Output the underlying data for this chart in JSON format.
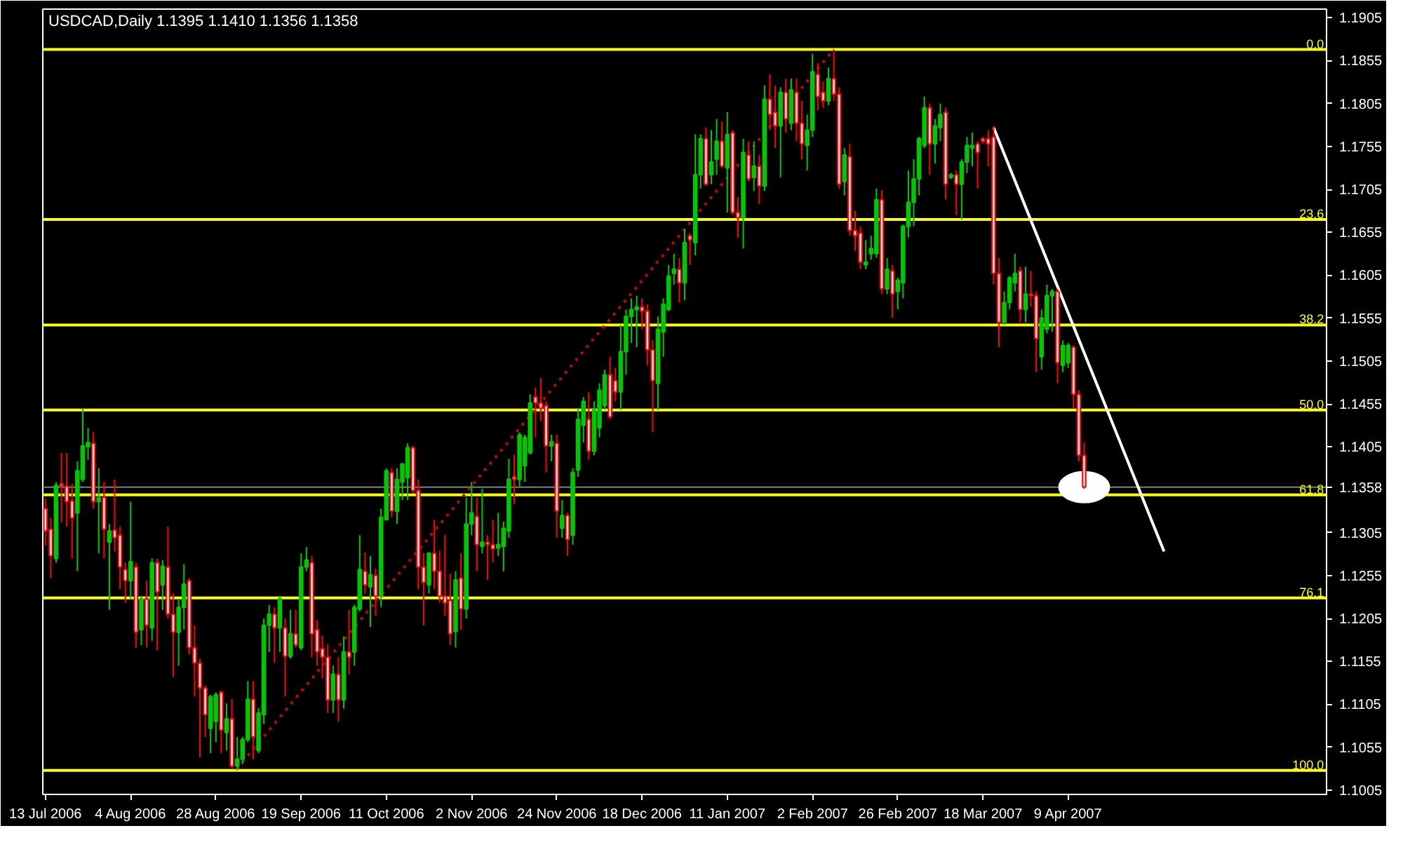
{
  "chart_data": {
    "type": "candlestick",
    "title": "USDCAD,Daily  1.1395 1.1410 1.1356 1.1358",
    "categories": [
      "13 Jul 2006",
      null,
      null,
      null,
      null,
      null,
      null,
      null,
      null,
      null,
      null,
      null,
      null,
      null,
      null,
      null,
      "4 Aug 2006",
      null,
      null,
      null,
      null,
      null,
      null,
      null,
      null,
      null,
      null,
      null,
      null,
      null,
      null,
      null,
      "28 Aug 2006",
      null,
      null,
      null,
      null,
      null,
      null,
      null,
      null,
      null,
      null,
      null,
      null,
      null,
      null,
      null,
      "19 Sep 2006",
      null,
      null,
      null,
      null,
      null,
      null,
      null,
      null,
      null,
      null,
      null,
      null,
      null,
      null,
      null,
      "11 Oct 2006",
      null,
      null,
      null,
      null,
      null,
      null,
      null,
      null,
      null,
      null,
      null,
      null,
      null,
      null,
      null,
      "2 Nov 2006",
      null,
      null,
      null,
      null,
      null,
      null,
      null,
      null,
      null,
      null,
      null,
      null,
      null,
      null,
      null,
      "24 Nov 2006",
      null,
      null,
      null,
      null,
      null,
      null,
      null,
      null,
      null,
      null,
      null,
      null,
      null,
      null,
      null,
      "18 Dec 2006",
      null,
      null,
      null,
      null,
      null,
      null,
      null,
      null,
      null,
      null,
      null,
      null,
      null,
      null,
      null,
      "11 Jan 2007",
      null,
      null,
      null,
      null,
      null,
      null,
      null,
      null,
      null,
      null,
      null,
      null,
      null,
      null,
      null,
      "2 Feb 2007",
      null,
      null,
      null,
      null,
      null,
      null,
      null,
      null,
      null,
      null,
      null,
      null,
      null,
      null,
      null,
      "26 Feb 2007",
      null,
      null,
      null,
      null,
      null,
      null,
      null,
      null,
      null,
      null,
      null,
      null,
      null,
      null,
      null,
      "18 Mar 2007",
      null,
      null,
      null,
      null,
      null,
      null,
      null,
      null,
      null,
      null,
      null,
      null,
      null,
      null,
      null,
      "9 Apr 2007",
      null,
      null,
      null,
      null,
      null,
      null,
      null,
      null,
      null,
      null,
      null,
      null,
      null,
      null,
      null,
      null,
      null,
      null,
      null,
      null,
      null,
      null,
      null,
      null,
      null,
      null,
      null,
      null,
      null,
      null,
      null,
      null,
      null,
      null,
      null,
      null,
      null,
      null,
      null,
      null,
      null,
      null,
      null,
      null,
      null,
      null,
      null,
      null
    ],
    "ohlc": [
      [
        1.1333,
        1.1345,
        1.129,
        1.1307
      ],
      [
        1.1309,
        1.1322,
        1.1252,
        1.1278
      ],
      [
        1.1275,
        1.1364,
        1.127,
        1.136
      ],
      [
        1.1362,
        1.1398,
        1.1317,
        1.1359
      ],
      [
        1.1359,
        1.1398,
        1.1312,
        1.1341
      ],
      [
        1.1342,
        1.1362,
        1.1275,
        1.1322
      ],
      [
        1.1328,
        1.1388,
        1.126,
        1.1377
      ],
      [
        1.1367,
        1.145,
        1.1364,
        1.1406
      ],
      [
        1.1405,
        1.1427,
        1.139,
        1.141
      ],
      [
        1.1409,
        1.1422,
        1.1333,
        1.1341
      ],
      [
        1.1341,
        1.138,
        1.1281,
        1.1346
      ],
      [
        1.1346,
        1.1364,
        1.1275,
        1.1309
      ],
      [
        1.1294,
        1.1315,
        1.1215,
        1.1307
      ],
      [
        1.1308,
        1.1367,
        1.1283,
        1.1299
      ],
      [
        1.1302,
        1.1312,
        1.1239,
        1.1265
      ],
      [
        1.1262,
        1.127,
        1.1223,
        1.1249
      ],
      [
        1.1249,
        1.1341,
        1.1228,
        1.1271
      ],
      [
        1.1265,
        1.127,
        1.1171,
        1.1189
      ],
      [
        1.1192,
        1.1231,
        1.1174,
        1.1228
      ],
      [
        1.1228,
        1.1249,
        1.1171,
        1.1197
      ],
      [
        1.1194,
        1.1275,
        1.1179,
        1.127
      ],
      [
        1.127,
        1.1275,
        1.1168,
        1.1236
      ],
      [
        1.1244,
        1.1273,
        1.1215,
        1.1266
      ],
      [
        1.1265,
        1.1312,
        1.1205,
        1.121
      ],
      [
        1.121,
        1.1234,
        1.1137,
        1.1189
      ],
      [
        1.1189,
        1.1228,
        1.115,
        1.1218
      ],
      [
        1.1218,
        1.1268,
        1.1192,
        1.1245
      ],
      [
        1.1249,
        1.1252,
        1.1163,
        1.1171
      ],
      [
        1.1171,
        1.1197,
        1.1114,
        1.1153
      ],
      [
        1.1153,
        1.1158,
        1.1043,
        1.1124
      ],
      [
        1.1124,
        1.1127,
        1.1067,
        1.1093
      ],
      [
        1.1077,
        1.1116,
        1.1048,
        1.1114
      ],
      [
        1.1085,
        1.1119,
        1.1061,
        1.1116
      ],
      [
        1.1119,
        1.1121,
        1.1048,
        1.1075
      ],
      [
        1.1072,
        1.1106,
        1.1051,
        1.1088
      ],
      [
        1.1088,
        1.1111,
        1.103,
        1.1033
      ],
      [
        1.1033,
        1.1067,
        1.1028,
        1.1041
      ],
      [
        1.1041,
        1.1067,
        1.1035,
        1.1064
      ],
      [
        1.1064,
        1.1132,
        1.1061,
        1.1111
      ],
      [
        1.1111,
        1.1132,
        1.1041,
        1.1067
      ],
      [
        1.1051,
        1.1101,
        1.1048,
        1.1095
      ],
      [
        1.1093,
        1.1205,
        1.1082,
        1.1197
      ],
      [
        1.1197,
        1.1221,
        1.1166,
        1.121
      ],
      [
        1.121,
        1.1218,
        1.1153,
        1.1194
      ],
      [
        1.1194,
        1.1231,
        1.1166,
        1.1228
      ],
      [
        1.1194,
        1.1205,
        1.1114,
        1.1161
      ],
      [
        1.1161,
        1.1215,
        1.1158,
        1.1187
      ],
      [
        1.1187,
        1.1215,
        1.1171,
        1.1174
      ],
      [
        1.1171,
        1.1281,
        1.1168,
        1.1265
      ],
      [
        1.1265,
        1.1288,
        1.126,
        1.1273
      ],
      [
        1.127,
        1.1278,
        1.116,
        1.1187
      ],
      [
        1.1192,
        1.1203,
        1.115,
        1.1166
      ],
      [
        1.117,
        1.1185,
        1.1135,
        1.116
      ],
      [
        1.116,
        1.1175,
        1.1095,
        1.111
      ],
      [
        1.111,
        1.115,
        1.1095,
        1.114
      ],
      [
        1.114,
        1.116,
        1.1085,
        1.111
      ],
      [
        1.111,
        1.1184,
        1.11,
        1.1166
      ],
      [
        1.1166,
        1.1215,
        1.114,
        1.116
      ],
      [
        1.1166,
        1.1221,
        1.115,
        1.1218
      ],
      [
        1.1216,
        1.1302,
        1.1213,
        1.1262
      ],
      [
        1.126,
        1.1282,
        1.1234,
        1.1244
      ],
      [
        1.1242,
        1.1278,
        1.1195,
        1.1256
      ],
      [
        1.1255,
        1.1263,
        1.1208,
        1.1231
      ],
      [
        1.1231,
        1.1333,
        1.1218,
        1.1323
      ],
      [
        1.132,
        1.138,
        1.132,
        1.1377
      ],
      [
        1.1375,
        1.138,
        1.1323,
        1.133
      ],
      [
        1.133,
        1.138,
        1.1315,
        1.1367
      ],
      [
        1.1364,
        1.1386,
        1.1343,
        1.1385
      ],
      [
        1.1369,
        1.1409,
        1.1343,
        1.1404
      ],
      [
        1.1404,
        1.1406,
        1.1351,
        1.1354
      ],
      [
        1.1354,
        1.1367,
        1.1239,
        1.1265
      ],
      [
        1.1265,
        1.1281,
        1.1197,
        1.1247
      ],
      [
        1.1244,
        1.1282,
        1.1234,
        1.1281
      ],
      [
        1.1281,
        1.132,
        1.1239,
        1.126
      ],
      [
        1.126,
        1.1284,
        1.1223,
        1.1231
      ],
      [
        1.1231,
        1.1302,
        1.1208,
        1.1223
      ],
      [
        1.1226,
        1.1257,
        1.1174,
        1.1187
      ],
      [
        1.119,
        1.126,
        1.1171,
        1.125
      ],
      [
        1.1252,
        1.1281,
        1.1192,
        1.1216
      ],
      [
        1.1216,
        1.1346,
        1.1205,
        1.1315
      ],
      [
        1.1315,
        1.1364,
        1.1302,
        1.1328
      ],
      [
        1.1324,
        1.1346,
        1.126,
        1.1291
      ],
      [
        1.1289,
        1.1356,
        1.1281,
        1.1294
      ],
      [
        1.1294,
        1.1302,
        1.125,
        1.1291
      ],
      [
        1.1291,
        1.132,
        1.127,
        1.1286
      ],
      [
        1.1287,
        1.1328,
        1.1278,
        1.1291
      ],
      [
        1.1289,
        1.1318,
        1.126,
        1.131
      ],
      [
        1.1307,
        1.1391,
        1.1299,
        1.1367
      ],
      [
        1.137,
        1.1396,
        1.1338,
        1.1367
      ],
      [
        1.1367,
        1.1422,
        1.1359,
        1.1419
      ],
      [
        1.1383,
        1.1419,
        1.1364,
        1.1416
      ],
      [
        1.1398,
        1.1466,
        1.1396,
        1.1456
      ],
      [
        1.1463,
        1.1474,
        1.1416,
        1.1456
      ],
      [
        1.1456,
        1.1485,
        1.1435,
        1.145
      ],
      [
        1.1453,
        1.1458,
        1.1375,
        1.1406
      ],
      [
        1.1406,
        1.1419,
        1.1388,
        1.1411
      ],
      [
        1.1409,
        1.1419,
        1.1299,
        1.133
      ],
      [
        1.131,
        1.1343,
        1.1299,
        1.1325
      ],
      [
        1.1325,
        1.1328,
        1.1278,
        1.1297
      ],
      [
        1.1302,
        1.138,
        1.1291,
        1.1375
      ],
      [
        1.1378,
        1.145,
        1.137,
        1.1437
      ],
      [
        1.143,
        1.1463,
        1.141,
        1.1458
      ],
      [
        1.1437,
        1.1469,
        1.139,
        1.14
      ],
      [
        1.14,
        1.1458,
        1.1395,
        1.1448
      ],
      [
        1.1427,
        1.1479,
        1.1416,
        1.1471
      ],
      [
        1.1453,
        1.1495,
        1.1448,
        1.1489
      ],
      [
        1.1489,
        1.151,
        1.1437,
        1.144
      ],
      [
        1.1482,
        1.1497,
        1.1458,
        1.1469
      ],
      [
        1.1469,
        1.1547,
        1.1448,
        1.1516
      ],
      [
        1.1516,
        1.1565,
        1.1489,
        1.1557
      ],
      [
        1.1557,
        1.1578,
        1.1526,
        1.1565
      ],
      [
        1.1565,
        1.1581,
        1.1521,
        1.1568
      ],
      [
        1.1568,
        1.1578,
        1.1542,
        1.1563
      ],
      [
        1.1563,
        1.1571,
        1.15,
        1.1518
      ],
      [
        1.1518,
        1.1529,
        1.1422,
        1.1482
      ],
      [
        1.1479,
        1.1557,
        1.1448,
        1.1542
      ],
      [
        1.1539,
        1.1578,
        1.151,
        1.1571
      ],
      [
        1.1565,
        1.1617,
        1.1563,
        1.1604
      ],
      [
        1.1607,
        1.163,
        1.1594,
        1.1612
      ],
      [
        1.1612,
        1.1625,
        1.1573,
        1.1596
      ],
      [
        1.1596,
        1.1659,
        1.1576,
        1.1643
      ],
      [
        1.1651,
        1.1654,
        1.1617,
        1.1646
      ],
      [
        1.1643,
        1.1769,
        1.1628,
        1.1722
      ],
      [
        1.1722,
        1.1769,
        1.1706,
        1.1764
      ],
      [
        1.1764,
        1.1777,
        1.1709,
        1.1711
      ],
      [
        1.1722,
        1.1774,
        1.1711,
        1.1737
      ],
      [
        1.174,
        1.1787,
        1.1722,
        1.1761
      ],
      [
        1.1761,
        1.1784,
        1.173,
        1.1732
      ],
      [
        1.173,
        1.1795,
        1.1678,
        1.1769
      ],
      [
        1.1771,
        1.1774,
        1.1675,
        1.1678
      ],
      [
        1.1678,
        1.1696,
        1.1649,
        1.1672
      ],
      [
        1.1672,
        1.1764,
        1.1636,
        1.1748
      ],
      [
        1.1745,
        1.1761,
        1.1714,
        1.1717
      ],
      [
        1.1719,
        1.1761,
        1.1703,
        1.1732
      ],
      [
        1.1732,
        1.1745,
        1.1688,
        1.1709
      ],
      [
        1.1709,
        1.1826,
        1.1703,
        1.181
      ],
      [
        1.181,
        1.1839,
        1.1774,
        1.1792
      ],
      [
        1.1795,
        1.1826,
        1.1753,
        1.1779
      ],
      [
        1.1779,
        1.1824,
        1.1719,
        1.1818
      ],
      [
        1.1818,
        1.1834,
        1.1771,
        1.1787
      ],
      [
        1.1782,
        1.1834,
        1.1774,
        1.1821
      ],
      [
        1.1818,
        1.1834,
        1.1761,
        1.1782
      ],
      [
        1.1782,
        1.1808,
        1.174,
        1.1758
      ],
      [
        1.1756,
        1.1792,
        1.1727,
        1.1774
      ],
      [
        1.1774,
        1.1863,
        1.1766,
        1.1842
      ],
      [
        1.1839,
        1.1852,
        1.1797,
        1.1813
      ],
      [
        1.1818,
        1.1831,
        1.18,
        1.1808
      ],
      [
        1.1808,
        1.1847,
        1.1803,
        1.1834
      ],
      [
        1.1834,
        1.1868,
        1.1808,
        1.1816
      ],
      [
        1.1816,
        1.1824,
        1.1706,
        1.1711
      ],
      [
        1.1714,
        1.1753,
        1.1698,
        1.1745
      ],
      [
        1.1743,
        1.1758,
        1.1651,
        1.1657
      ],
      [
        1.1657,
        1.168,
        1.1633,
        1.1651
      ],
      [
        1.1654,
        1.1662,
        1.1612,
        1.162
      ],
      [
        1.1617,
        1.1646,
        1.1612,
        1.162
      ],
      [
        1.163,
        1.1651,
        1.1623,
        1.1636
      ],
      [
        1.163,
        1.1706,
        1.1625,
        1.1693
      ],
      [
        1.1693,
        1.1704,
        1.1583,
        1.1589
      ],
      [
        1.1589,
        1.1625,
        1.1583,
        1.1612
      ],
      [
        1.161,
        1.1617,
        1.1555,
        1.1583
      ],
      [
        1.1586,
        1.1602,
        1.1565,
        1.1599
      ],
      [
        1.1596,
        1.1664,
        1.1578,
        1.1662
      ],
      [
        1.1662,
        1.1727,
        1.1649,
        1.169
      ],
      [
        1.169,
        1.174,
        1.1662,
        1.1717
      ],
      [
        1.1717,
        1.1766,
        1.1698,
        1.1764
      ],
      [
        1.1756,
        1.1813,
        1.1753,
        1.18
      ],
      [
        1.18,
        1.1805,
        1.1722,
        1.1758
      ],
      [
        1.1758,
        1.1787,
        1.1735,
        1.1779
      ],
      [
        1.1777,
        1.1805,
        1.1761,
        1.1792
      ],
      [
        1.1795,
        1.18,
        1.1693,
        1.1711
      ],
      [
        1.1719,
        1.1724,
        1.1717,
        1.1722
      ],
      [
        1.1722,
        1.1727,
        1.1675,
        1.1711
      ],
      [
        1.1711,
        1.174,
        1.167,
        1.1737
      ],
      [
        1.1737,
        1.1766,
        1.1724,
        1.1756
      ],
      [
        1.1753,
        1.1771,
        1.1732,
        1.1756
      ],
      [
        1.1758,
        1.1761,
        1.1706,
        1.1748
      ],
      [
        1.1764,
        1.1766,
        1.1758,
        1.1761
      ],
      [
        1.1764,
        1.1774,
        1.1732,
        1.1758
      ],
      [
        1.1766,
        1.1779,
        1.1594,
        1.1607
      ],
      [
        1.1607,
        1.1625,
        1.1521,
        1.155
      ],
      [
        1.155,
        1.1586,
        1.1547,
        1.1573
      ],
      [
        1.1573,
        1.1604,
        1.1565,
        1.1602
      ],
      [
        1.1596,
        1.163,
        1.1586,
        1.1607
      ],
      [
        1.161,
        1.1615,
        1.155,
        1.1565
      ],
      [
        1.1565,
        1.1615,
        1.155,
        1.1583
      ],
      [
        1.1583,
        1.161,
        1.1568,
        1.1581
      ],
      [
        1.1581,
        1.1586,
        1.1492,
        1.1531
      ],
      [
        1.151,
        1.1565,
        1.1495,
        1.1555
      ],
      [
        1.1542,
        1.1594,
        1.1537,
        1.1581
      ],
      [
        1.1581,
        1.1589,
        1.1539,
        1.1586
      ],
      [
        1.1586,
        1.1589,
        1.1479,
        1.1503
      ],
      [
        1.15,
        1.1529,
        1.1492,
        1.1523
      ],
      [
        1.1503,
        1.1526,
        1.1497,
        1.1523
      ],
      [
        1.1521,
        1.1523,
        1.145,
        1.1466
      ],
      [
        1.1466,
        1.1471,
        1.1388,
        1.1395
      ],
      [
        1.1395,
        1.141,
        1.1356,
        1.1358
      ],
      null,
      null,
      null,
      null,
      null,
      null,
      null,
      null,
      null,
      null,
      null,
      null,
      null,
      null,
      null,
      null,
      null,
      null,
      null,
      null,
      null,
      null,
      null,
      null,
      null,
      null,
      null,
      null,
      null,
      null,
      null,
      null,
      null,
      null,
      null,
      null,
      null,
      null,
      null,
      null,
      null,
      null,
      null,
      null,
      null
    ],
    "colors": [
      "#ff0000",
      "#ff0000",
      "#00c800",
      "#ff0000",
      "#ff0000",
      "#ff0000",
      "#00c800",
      "#00c800",
      "#00c800",
      "#ff0000",
      "#00c800",
      "#ff0000",
      "#00c800",
      "#ff0000",
      "#ff0000",
      "#ff0000",
      "#00c800",
      "#ff0000",
      "#00c800",
      "#ff0000",
      "#00c800",
      "#ff0000",
      "#00c800",
      "#ff0000",
      "#ff0000",
      "#00c800",
      "#00c800",
      "#ff0000",
      "#ff0000",
      "#ff0000",
      "#ff0000",
      "#00c800",
      "#00c800",
      "#ff0000",
      "#00c800",
      "#ff0000",
      "#00c800",
      "#00c800",
      "#00c800",
      "#ff0000",
      "#00c800",
      "#00c800",
      "#00c800",
      "#ff0000",
      "#00c800",
      "#ff0000",
      "#00c800",
      "#ff0000",
      "#00c800",
      "#00c800",
      "#ff0000",
      "#ff0000",
      "#ff0000",
      "#ff0000",
      "#00c800",
      "#ff0000",
      "#00c800",
      "#ff0000",
      "#00c800",
      "#00c800",
      "#ff0000",
      "#00c800",
      "#ff0000",
      "#00c800",
      "#00c800",
      "#ff0000",
      "#00c800",
      "#00c800",
      "#00c800",
      "#ff0000",
      "#ff0000",
      "#ff0000",
      "#00c800",
      "#ff0000",
      "#ff0000",
      "#ff0000",
      "#ff0000",
      "#00c800",
      "#ff0000",
      "#00c800",
      "#00c800",
      "#ff0000",
      "#00c800",
      "#ff0000",
      "#ff0000",
      "#00c800",
      "#00c800",
      "#00c800",
      "#ff0000",
      "#00c800",
      "#00c800",
      "#00c800",
      "#ff0000",
      "#ff0000",
      "#ff0000",
      "#00c800",
      "#ff0000",
      "#00c800",
      "#ff0000",
      "#00c800",
      "#00c800",
      "#00c800",
      "#ff0000",
      "#00c800",
      "#00c800",
      "#00c800",
      "#ff0000",
      "#ff0000",
      "#00c800",
      "#00c800",
      "#00c800",
      "#00c800",
      "#ff0000",
      "#ff0000",
      "#ff0000",
      "#00c800",
      "#00c800",
      "#00c800",
      "#00c800",
      "#ff0000",
      "#00c800",
      "#ff0000",
      "#00c800",
      "#00c800",
      "#ff0000",
      "#00c800",
      "#00c800",
      "#ff0000",
      "#00c800",
      "#ff0000",
      "#ff0000",
      "#00c800",
      "#ff0000",
      "#00c800",
      "#ff0000",
      "#00c800",
      "#ff0000",
      "#ff0000",
      "#00c800",
      "#ff0000",
      "#00c800",
      "#ff0000",
      "#ff0000",
      "#00c800",
      "#00c800",
      "#ff0000",
      "#ff0000",
      "#00c800",
      "#ff0000",
      "#ff0000",
      "#00c800",
      "#ff0000",
      "#ff0000",
      "#ff0000",
      "#00c800",
      "#00c800",
      "#00c800",
      "#ff0000",
      "#00c800",
      "#ff0000",
      "#00c800",
      "#00c800",
      "#00c800",
      "#00c800",
      "#00c800",
      "#00c800",
      "#ff0000",
      "#00c800",
      "#00c800",
      "#ff0000",
      "#00c800",
      "#ff0000",
      "#00c800",
      "#00c800",
      "#00c800",
      "#ff0000",
      "#ff0000",
      "#ff0000",
      "#ff0000",
      "#ff0000",
      "#00c800",
      "#00c800",
      "#00c800",
      "#ff0000",
      "#00c800",
      "#ff0000",
      "#ff0000",
      "#00c800",
      "#00c800",
      "#00c800",
      "#ff0000",
      "#00c800",
      "#00c800",
      "#ff0000",
      "#ff0000",
      "#ff0000",
      null,
      null,
      null,
      null,
      null,
      null,
      null,
      null,
      null,
      null,
      null,
      null,
      null,
      null,
      null,
      null,
      null,
      null,
      null,
      null,
      null,
      null,
      null,
      null,
      null,
      null,
      null,
      null,
      null,
      null,
      null,
      null,
      null,
      null,
      null,
      null,
      null,
      null,
      null,
      null,
      null,
      null,
      null,
      null,
      null
    ],
    "series": [
      {
        "type": "scatter",
        "color": "#ffffff",
        "marker": "circle",
        "values": [
          null,
          null,
          null,
          null,
          null,
          null,
          null,
          null,
          null,
          null,
          null,
          null,
          null,
          null,
          null,
          null,
          null,
          null,
          null,
          null,
          null,
          null,
          null,
          null,
          null,
          null,
          null,
          null,
          null,
          null,
          null,
          null,
          null,
          null,
          null,
          null,
          null,
          null,
          null,
          null,
          null,
          null,
          null,
          null,
          null,
          null,
          null,
          null,
          null,
          null,
          null,
          null,
          null,
          null,
          null,
          null,
          null,
          null,
          null,
          null,
          null,
          null,
          null,
          null,
          null,
          null,
          null,
          null,
          null,
          null,
          null,
          null,
          null,
          null,
          null,
          null,
          null,
          null,
          null,
          null,
          null,
          null,
          null,
          null,
          null,
          null,
          null,
          null,
          null,
          null,
          null,
          null,
          null,
          null,
          null,
          null,
          null,
          null,
          null,
          null,
          null,
          null,
          null,
          null,
          null,
          null,
          null,
          null,
          null,
          null,
          null,
          null,
          null,
          null,
          null,
          null,
          null,
          null,
          null,
          null,
          null,
          null,
          null,
          null,
          null,
          null,
          null,
          null,
          null,
          null,
          null,
          null,
          null,
          null,
          null,
          null,
          null,
          null,
          null,
          null,
          null,
          null,
          null,
          null,
          null,
          null,
          null,
          null,
          null,
          null,
          null,
          null,
          null,
          null,
          null,
          null,
          null,
          null,
          null,
          null,
          null,
          null,
          null,
          null,
          null,
          null,
          null,
          null,
          null,
          null,
          null,
          null,
          null,
          null,
          null,
          null,
          null,
          null,
          null,
          null,
          null,
          null,
          null,
          null,
          null,
          null,
          null,
          null,
          null,
          null,
          null,
          null,
          null,
          null,
          null,
          1.1358,
          null,
          null,
          null,
          null,
          null,
          null,
          null,
          null,
          null,
          null,
          null,
          null,
          null,
          null,
          null,
          null,
          null,
          null,
          null,
          null,
          null,
          null,
          null,
          null,
          null,
          null,
          null,
          null,
          null,
          null,
          null,
          null,
          null,
          null,
          null,
          null,
          null,
          null,
          null,
          null,
          null,
          null,
          null,
          null,
          null
        ]
      },
      {
        "type": "line",
        "color": "#cc0000",
        "line_style": "dotted",
        "values": [
          null,
          null,
          null,
          null,
          null,
          null,
          null,
          null,
          null,
          null,
          null,
          null,
          null,
          null,
          null,
          null,
          null,
          null,
          null,
          null,
          null,
          null,
          null,
          null,
          null,
          null,
          null,
          null,
          null,
          null,
          null,
          null,
          null,
          null,
          null,
          null,
          1.103,
          null,
          null,
          null,
          null,
          null,
          null,
          null,
          null,
          null,
          null,
          null,
          null,
          null,
          null,
          null,
          null,
          null,
          null,
          null,
          null,
          null,
          null,
          null,
          null,
          null,
          null,
          null,
          null,
          null,
          null,
          null,
          null,
          null,
          null,
          null,
          null,
          null,
          null,
          null,
          null,
          null,
          null,
          null,
          null,
          null,
          null,
          null,
          null,
          null,
          null,
          null,
          null,
          null,
          null,
          null,
          null,
          null,
          null,
          null,
          null,
          null,
          null,
          null,
          null,
          null,
          null,
          null,
          null,
          null,
          null,
          null,
          null,
          null,
          null,
          null,
          null,
          null,
          null,
          null,
          null,
          null,
          null,
          null,
          null,
          null,
          null,
          null,
          null,
          null,
          null,
          null,
          null,
          null,
          null,
          null,
          null,
          null,
          null,
          null,
          null,
          null,
          null,
          null,
          null,
          null,
          null,
          null,
          null,
          null,
          null,
          null,
          1.1868,
          null,
          null,
          null,
          null,
          null,
          null,
          null,
          null,
          null,
          null,
          null,
          null,
          null,
          null,
          null,
          null,
          null,
          null,
          null,
          null,
          null,
          null,
          null,
          null,
          null,
          null,
          null,
          null,
          null,
          null,
          null,
          null,
          null,
          null,
          null,
          null,
          null,
          null,
          null,
          null,
          null,
          null,
          null,
          null,
          null,
          null,
          null,
          null,
          null,
          null,
          null,
          null,
          null,
          null,
          null,
          null,
          null,
          null,
          null,
          null,
          null,
          null,
          null,
          null,
          null,
          null,
          null,
          null,
          null,
          null,
          null,
          null,
          null,
          null,
          null,
          null,
          null,
          null,
          null,
          null,
          null,
          null,
          null,
          null,
          null,
          null,
          null,
          null,
          null,
          null,
          null,
          null
        ]
      },
      {
        "type": "line",
        "color": "#ffffff",
        "line_style": "solid",
        "values": [
          null,
          null,
          null,
          null,
          null,
          null,
          null,
          null,
          null,
          null,
          null,
          null,
          null,
          null,
          null,
          null,
          null,
          null,
          null,
          null,
          null,
          null,
          null,
          null,
          null,
          null,
          null,
          null,
          null,
          null,
          null,
          null,
          null,
          null,
          null,
          null,
          null,
          null,
          null,
          null,
          null,
          null,
          null,
          null,
          null,
          null,
          null,
          null,
          null,
          null,
          null,
          null,
          null,
          null,
          null,
          null,
          null,
          null,
          null,
          null,
          null,
          null,
          null,
          null,
          null,
          null,
          null,
          null,
          null,
          null,
          null,
          null,
          null,
          null,
          null,
          null,
          null,
          null,
          null,
          null,
          null,
          null,
          null,
          null,
          null,
          null,
          null,
          null,
          null,
          null,
          null,
          null,
          null,
          null,
          null,
          null,
          null,
          null,
          null,
          null,
          null,
          null,
          null,
          null,
          null,
          null,
          null,
          null,
          null,
          null,
          null,
          null,
          null,
          null,
          null,
          null,
          null,
          null,
          null,
          null,
          null,
          null,
          null,
          null,
          null,
          null,
          null,
          null,
          null,
          null,
          null,
          null,
          null,
          null,
          null,
          null,
          null,
          null,
          null,
          null,
          null,
          null,
          null,
          null,
          null,
          null,
          null,
          null,
          null,
          null,
          null,
          null,
          null,
          null,
          null,
          null,
          null,
          null,
          null,
          null,
          null,
          null,
          null,
          null,
          null,
          null,
          null,
          null,
          null,
          null,
          null,
          null,
          null,
          null,
          null,
          null,
          null,
          null,
          1.1777,
          null,
          null,
          null,
          null,
          null,
          null,
          null,
          null,
          null,
          null,
          null,
          null,
          null,
          null,
          null,
          null,
          null,
          null,
          null,
          null,
          null,
          null,
          null,
          null,
          null,
          null,
          null,
          null,
          null,
          null,
          null,
          1.1283,
          null,
          null,
          null,
          null,
          null,
          null,
          null,
          null,
          null,
          null,
          null,
          null,
          null,
          null,
          null,
          null,
          null,
          null,
          null,
          null,
          null,
          null,
          null,
          null,
          null,
          null,
          null,
          null,
          null,
          null
        ]
      }
    ],
    "ylim": [
      1.1,
      1.1915
    ],
    "yticks": [
      1.1905,
      1.1855,
      1.1805,
      1.1755,
      1.1705,
      1.1655,
      1.1605,
      1.1555,
      1.1505,
      1.1455,
      1.1405,
      {
        "value": 1.1358,
        "label": "1.1358"
      },
      1.1305,
      1.1255,
      1.1205,
      1.1155,
      1.1105,
      1.1055,
      1.1005
    ],
    "ref_lines": [
      {
        "axis": "y",
        "value": 1.1868,
        "color": "#ffff00"
      },
      {
        "axis": "y",
        "value": 1.167,
        "color": "#ffff00"
      },
      {
        "axis": "y",
        "value": 1.1547,
        "color": "#ffff00"
      },
      {
        "axis": "y",
        "value": 1.1448,
        "color": "#ffff00"
      },
      {
        "axis": "y",
        "value": 1.1349,
        "color": "#ffff00"
      },
      {
        "axis": "y",
        "value": 1.1229,
        "color": "#ffff00"
      },
      {
        "axis": "y",
        "value": 1.1028,
        "color": "#ffff00"
      },
      {
        "axis": "y",
        "value": 1.1358,
        "color": "#808080"
      }
    ],
    "annotations": [
      {
        "text": "0.0",
        "y": 1.1868
      },
      {
        "text": "23.6",
        "y": 1.167
      },
      {
        "text": "38.2",
        "y": 1.1547
      },
      {
        "text": "50.0",
        "y": 1.1448
      },
      {
        "text": "61.8",
        "y": 1.1349
      },
      {
        "text": "76.1",
        "y": 1.1229
      },
      {
        "text": "100.0",
        "y": 1.1028
      }
    ]
  }
}
